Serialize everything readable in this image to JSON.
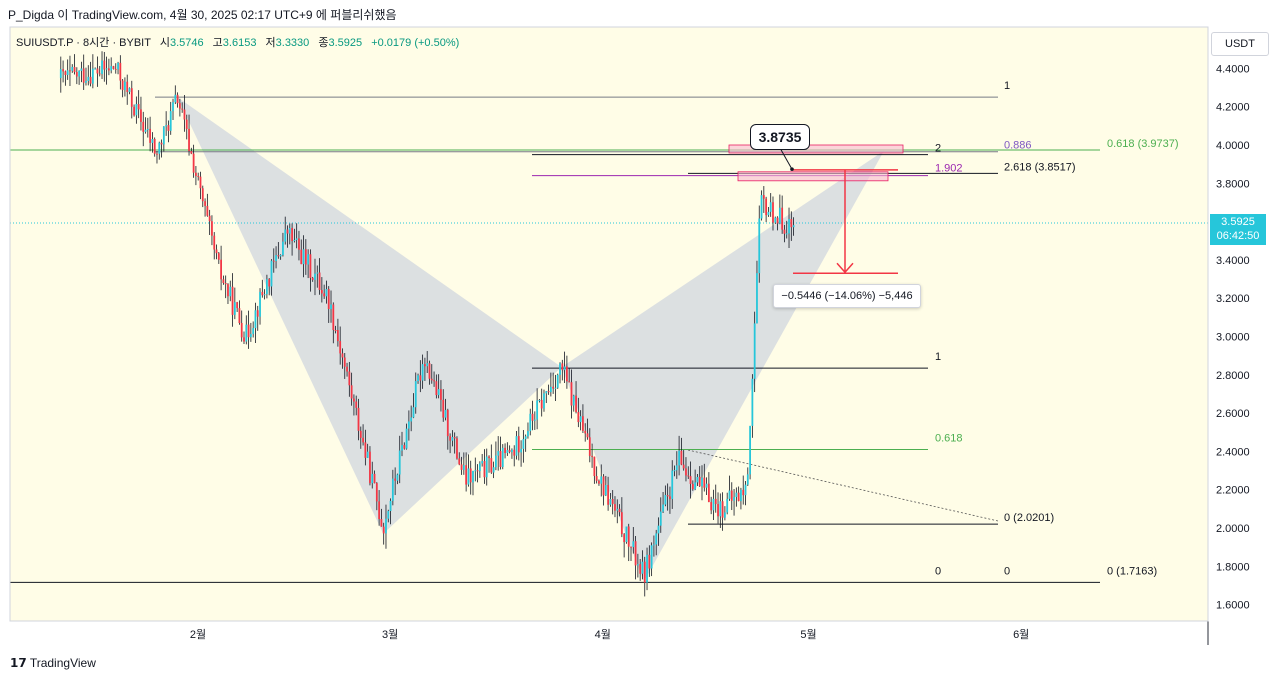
{
  "topbar": {
    "text": "P_Digda 이 TradingView.com, 4월 30, 2025 02:17 UTC+9 에 퍼블리쉬했음"
  },
  "legend": {
    "symbol": "SUIUSDT.P · 8시간 · BYBIT",
    "open_label": "시",
    "open": "3.5746",
    "high_label": "고",
    "high": "3.6153",
    "low_label": "저",
    "low": "3.3330",
    "close_label": "종",
    "close": "3.5925",
    "change": "+0.0179 (+0.50%)"
  },
  "axis": {
    "currency": "USDT",
    "current_price": "3.5925",
    "countdown": "06:42:50"
  },
  "callout": {
    "value": "3.8735"
  },
  "measure": {
    "text": "−0.5446 (−14.06%) −5,446"
  },
  "footer": {
    "brand": "TradingView"
  },
  "colors": {
    "up": "#26c6da",
    "down": "#f23645",
    "pattern_fill": "#b2bdd9",
    "background": "#fffde7"
  },
  "chart_data": {
    "type": "candlestick",
    "title": "",
    "ylim": [
      1.5,
      4.55
    ],
    "x_ticks": [
      "2월",
      "3월",
      "4월",
      "5월",
      "6월"
    ],
    "y_ticks": [
      "4.4000",
      "4.2000",
      "4.0000",
      "3.8000",
      "3.6000",
      "3.4000",
      "3.2000",
      "3.0000",
      "2.8000",
      "2.6000",
      "2.4000",
      "2.2000",
      "2.0000",
      "1.8000",
      "1.6000"
    ],
    "pattern": {
      "type": "harmonic-bat",
      "points": [
        {
          "date": "2025-01-29",
          "price": 4.25
        },
        {
          "date": "2025-02-28",
          "price": 1.97
        },
        {
          "date": "2025-03-26",
          "price": 2.84
        },
        {
          "date": "2025-04-07",
          "price": 1.72
        },
        {
          "date": "2025-05-12",
          "price": 3.97
        }
      ]
    },
    "fib_levels": [
      {
        "label": "1",
        "price": 4.25
      },
      {
        "label": "0.618 (3.9737)",
        "price": 3.9737
      },
      {
        "label": "0.886",
        "price": 3.97
      },
      {
        "label": "2",
        "price": 3.95
      },
      {
        "label": "2.618 (3.8517)",
        "price": 3.8517
      },
      {
        "label": "1.902",
        "price": 3.84
      },
      {
        "label": "1",
        "price": 2.835
      },
      {
        "label": "0.618",
        "price": 2.41
      },
      {
        "label": "0 (2.0201)",
        "price": 2.0201
      },
      {
        "label": "0",
        "price": 1.7163
      },
      {
        "label": "0",
        "price": 1.7163
      },
      {
        "label": "0 (1.7163)",
        "price": 1.7163
      }
    ],
    "target": {
      "from": 3.87,
      "to": 3.33
    },
    "candles_seed": 42
  }
}
